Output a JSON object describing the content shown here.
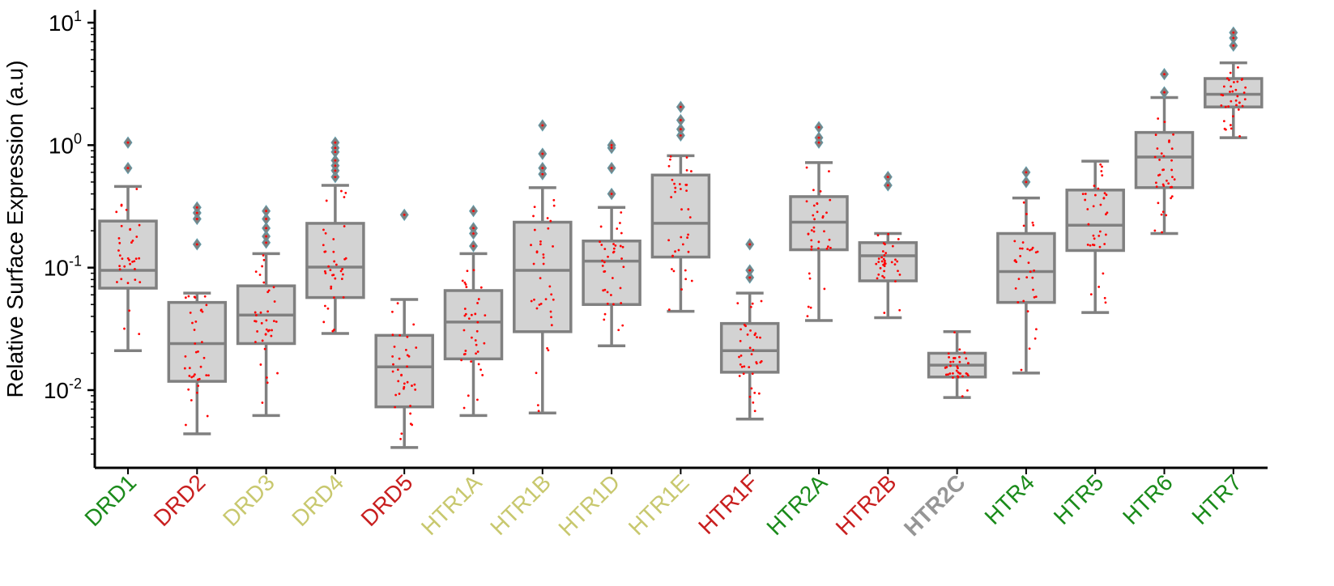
{
  "chart_data": {
    "type": "box",
    "ylabel": "Relative Surface Expression (a.u)",
    "yscale": "log",
    "ylim": [
      0.0025,
      13
    ],
    "yticks": [
      {
        "value": 0.01,
        "base": "10",
        "exp": "-2"
      },
      {
        "value": 0.1,
        "base": "10",
        "exp": "-1"
      },
      {
        "value": 1,
        "base": "10",
        "exp": "0"
      },
      {
        "value": 10,
        "base": "10",
        "exp": "1"
      }
    ],
    "colors": {
      "box_fill": "#d3d3d3",
      "box_edge": "#808080",
      "points": "#ff0000",
      "green": "#1a8a1a",
      "red": "#c81e1e",
      "olive": "#c8c86e",
      "gray": "#969696"
    },
    "categories": [
      {
        "name": "DRD1",
        "color": "green",
        "whislo": 0.021,
        "q1": 0.068,
        "med": 0.095,
        "q3": 0.24,
        "whishi": 0.46,
        "fliers": [
          0.65,
          1.05
        ]
      },
      {
        "name": "DRD2",
        "color": "red",
        "whislo": 0.0044,
        "q1": 0.0118,
        "med": 0.024,
        "q3": 0.052,
        "whishi": 0.062,
        "fliers": [
          0.155,
          0.25,
          0.28,
          0.31
        ]
      },
      {
        "name": "DRD3",
        "color": "olive",
        "whislo": 0.0062,
        "q1": 0.024,
        "med": 0.041,
        "q3": 0.071,
        "whishi": 0.13,
        "fliers": [
          0.16,
          0.18,
          0.21,
          0.25,
          0.29
        ]
      },
      {
        "name": "DRD4",
        "color": "olive",
        "whislo": 0.029,
        "q1": 0.057,
        "med": 0.101,
        "q3": 0.23,
        "whishi": 0.47,
        "fliers": [
          0.55,
          0.62,
          0.68,
          0.75,
          0.88,
          0.95,
          1.05
        ]
      },
      {
        "name": "DRD5",
        "color": "red",
        "whislo": 0.0034,
        "q1": 0.0073,
        "med": 0.0155,
        "q3": 0.028,
        "whishi": 0.055,
        "fliers": [
          0.27
        ]
      },
      {
        "name": "HTR1A",
        "color": "olive",
        "whislo": 0.0062,
        "q1": 0.018,
        "med": 0.036,
        "q3": 0.065,
        "whishi": 0.13,
        "fliers": [
          0.15,
          0.19,
          0.21,
          0.29
        ]
      },
      {
        "name": "HTR1B",
        "color": "olive",
        "whislo": 0.0065,
        "q1": 0.03,
        "med": 0.095,
        "q3": 0.235,
        "whishi": 0.45,
        "fliers": [
          0.58,
          0.65,
          0.85,
          1.45
        ]
      },
      {
        "name": "HTR1D",
        "color": "olive",
        "whislo": 0.023,
        "q1": 0.05,
        "med": 0.113,
        "q3": 0.165,
        "whishi": 0.31,
        "fliers": [
          0.4,
          0.65,
          0.95,
          1.0
        ]
      },
      {
        "name": "HTR1E",
        "color": "olive",
        "whislo": 0.044,
        "q1": 0.122,
        "med": 0.23,
        "q3": 0.57,
        "whishi": 0.82,
        "fliers": [
          1.2,
          1.35,
          1.6,
          2.05
        ]
      },
      {
        "name": "HTR1F",
        "color": "red",
        "whislo": 0.0058,
        "q1": 0.014,
        "med": 0.021,
        "q3": 0.035,
        "whishi": 0.062,
        "fliers": [
          0.083,
          0.095,
          0.155
        ]
      },
      {
        "name": "HTR2A",
        "color": "green",
        "whislo": 0.037,
        "q1": 0.14,
        "med": 0.235,
        "q3": 0.38,
        "whishi": 0.72,
        "fliers": [
          1.05,
          1.15,
          1.4
        ]
      },
      {
        "name": "HTR2B",
        "color": "red",
        "whislo": 0.039,
        "q1": 0.078,
        "med": 0.125,
        "q3": 0.16,
        "whishi": 0.19,
        "fliers": [
          0.47,
          0.55
        ]
      },
      {
        "name": "HTR2C",
        "color": "gray",
        "whislo": 0.0087,
        "q1": 0.0128,
        "med": 0.016,
        "q3": 0.02,
        "whishi": 0.03,
        "fliers": []
      },
      {
        "name": "HTR4",
        "color": "green",
        "whislo": 0.0138,
        "q1": 0.052,
        "med": 0.093,
        "q3": 0.19,
        "whishi": 0.37,
        "fliers": [
          0.5,
          0.6
        ]
      },
      {
        "name": "HTR5",
        "color": "green",
        "whislo": 0.043,
        "q1": 0.138,
        "med": 0.222,
        "q3": 0.43,
        "whishi": 0.74,
        "fliers": []
      },
      {
        "name": "HTR6",
        "color": "green",
        "whislo": 0.19,
        "q1": 0.45,
        "med": 0.8,
        "q3": 1.27,
        "whishi": 2.45,
        "fliers": [
          2.7,
          3.8
        ]
      },
      {
        "name": "HTR7",
        "color": "green",
        "whislo": 1.15,
        "q1": 2.05,
        "med": 2.6,
        "q3": 3.5,
        "whishi": 4.7,
        "fliers": [
          6.5,
          7.5,
          8.3
        ]
      }
    ]
  }
}
